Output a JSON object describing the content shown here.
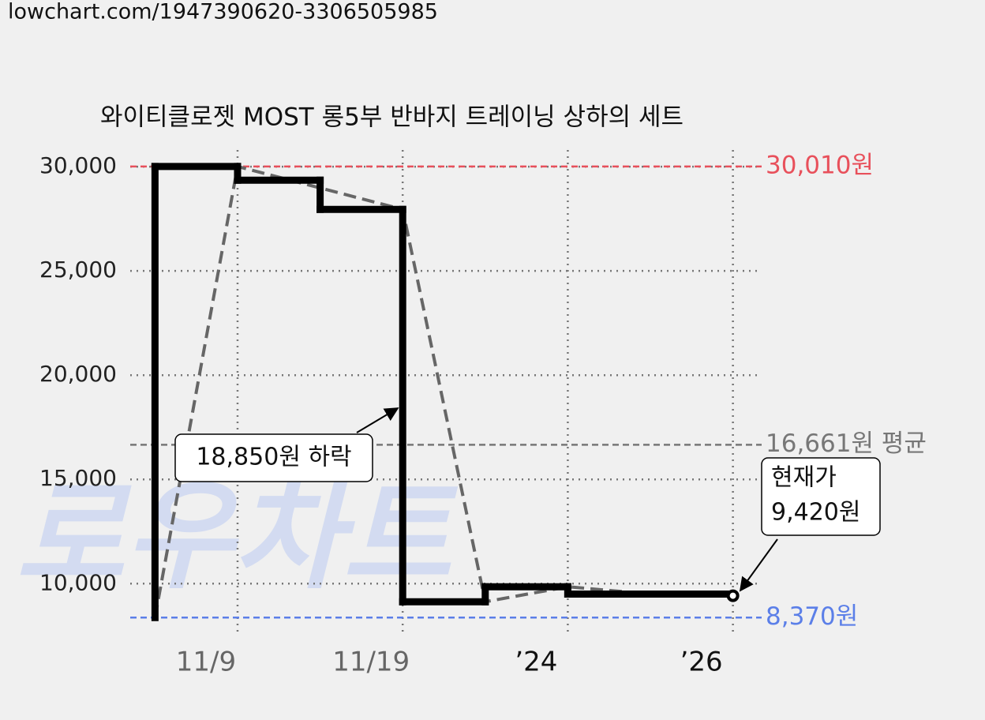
{
  "url": "lowchart.com/1947390620-3306505985",
  "chart_data": {
    "type": "line",
    "title": "와이티클로젯 MOST 롱5부 반바지 트레이닝 상하의 세트",
    "watermark": "로우차트",
    "xlim": [
      -0.3,
      7.3
    ],
    "xticks": [
      {
        "value": 1,
        "label": "11/9"
      },
      {
        "value": 3,
        "label": "11/19"
      },
      {
        "value": 5,
        "label": "’24"
      },
      {
        "value": 7,
        "label": "’26"
      }
    ],
    "ylim": [
      7700,
      30800
    ],
    "yticks": [
      {
        "value": 10000,
        "label": "10,000"
      },
      {
        "value": 15000,
        "label": "15,000"
      },
      {
        "value": 20000,
        "label": "20,000"
      },
      {
        "value": 25000,
        "label": "25,000"
      },
      {
        "value": 30000,
        "label": "30,000"
      }
    ],
    "grid": true,
    "series": [
      {
        "style": "step",
        "color": "#000000",
        "x": [
          0,
          0,
          1,
          2,
          3,
          4,
          5,
          7
        ],
        "values": [
          8370,
          30010,
          29350,
          27950,
          9130,
          9850,
          9500,
          9420
        ]
      },
      {
        "style": "dashed",
        "color": "#666666",
        "x": [
          0,
          1,
          3,
          4,
          5,
          6
        ],
        "values": [
          8370,
          30010,
          27950,
          9130,
          9850,
          9500
        ]
      }
    ],
    "reference_lines": [
      {
        "value": 30010,
        "label": "30,010원",
        "color": "#e8505b"
      },
      {
        "value": 16661,
        "label": "16,661원 평균",
        "color": "#777777"
      },
      {
        "value": 8370,
        "label": "8,370원",
        "color": "#5b7fe8"
      }
    ],
    "annotations": [
      {
        "text": "18,850원 하락"
      },
      {
        "text": [
          "현재가",
          "9,420원"
        ]
      }
    ]
  }
}
